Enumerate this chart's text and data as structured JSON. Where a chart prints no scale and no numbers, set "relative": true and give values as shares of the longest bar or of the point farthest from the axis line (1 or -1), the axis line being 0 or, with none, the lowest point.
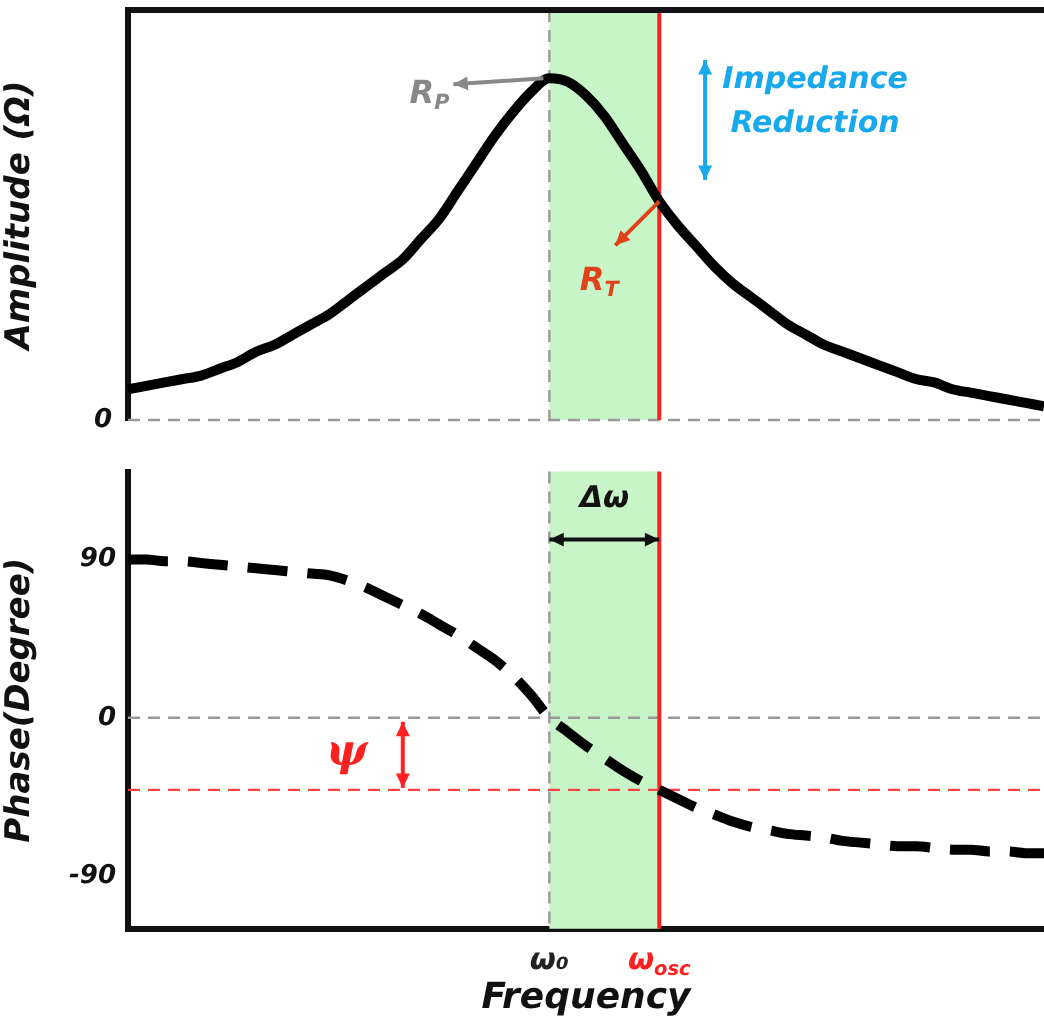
{
  "chart_data": [
    {
      "type": "line",
      "relative": true,
      "ylabel": "Amplitude (Ω)",
      "tick_labels": false,
      "categories": [
        null,
        null,
        null,
        null,
        null,
        null,
        null,
        null,
        null,
        null,
        null,
        null,
        null,
        null,
        null,
        null,
        null,
        null,
        null,
        null,
        null,
        null,
        null,
        "ω₀",
        null,
        null,
        null,
        null,
        null,
        "ω$_{osc}$",
        null,
        null,
        null,
        null,
        null,
        null,
        null,
        null,
        null,
        null,
        null,
        null,
        null,
        null,
        null,
        null,
        null,
        null,
        null,
        null,
        null
      ],
      "series": [
        {
          "color": "#000000",
          "values": [
            0.09,
            0.1,
            0.11,
            0.12,
            0.13,
            0.15,
            0.17,
            0.2,
            0.22,
            0.25,
            0.28,
            0.31,
            0.35,
            0.39,
            0.43,
            0.47,
            0.53,
            0.59,
            0.67,
            0.75,
            0.83,
            0.9,
            0.96,
            1,
            0.99,
            0.95,
            0.89,
            0.81,
            0.73,
            0.64,
            0.57,
            0.51,
            0.45,
            0.4,
            0.36,
            0.32,
            0.28,
            0.25,
            0.22,
            0.2,
            0.18,
            0.16,
            0.14,
            0.12,
            0.11,
            0.09,
            0.08,
            0.07,
            0.06,
            0.05,
            0.04
          ]
        }
      ],
      "ref_lines": [
        {
          "axis": "y",
          "value": 0,
          "label": "0",
          "color": "#999999",
          "line_style": "dashed"
        },
        {
          "axis": "x",
          "value": "ω₀",
          "color": "#999999",
          "line_style": "dashed"
        },
        {
          "axis": "x",
          "value": "ω$_{osc}$",
          "color": "#ff2020",
          "line_style": "solid"
        }
      ],
      "bands": [
        {
          "axis": "x",
          "from": "ω₀",
          "to": "ω$_{osc}$",
          "color": "#c8f5c8"
        }
      ],
      "annotations": [
        {
          "text": "R$_{P}$",
          "x": "ω₀",
          "y": 1
        },
        {
          "text": "R$_{T}$",
          "x": "ω$_{osc}$",
          "y": 0.64
        },
        "Impedance Reduction"
      ]
    },
    {
      "type": "line",
      "line_style": "dashed",
      "xlabel": "Frequency",
      "ylabel": "Phase(Degree)",
      "categories": [
        null,
        null,
        null,
        null,
        null,
        null,
        null,
        null,
        null,
        null,
        null,
        null,
        null,
        null,
        null,
        null,
        null,
        null,
        null,
        null,
        null,
        null,
        null,
        "ω₀",
        null,
        null,
        null,
        null,
        null,
        "ω$_{osc}$",
        null,
        null,
        null,
        null,
        null,
        null,
        null,
        null,
        null,
        null,
        null,
        null,
        null,
        null,
        null,
        null,
        null,
        null,
        null,
        null,
        null
      ],
      "ylim": [
        -120,
        140
      ],
      "yticks": [
        90,
        0,
        -90
      ],
      "series": [
        {
          "color": "#000000",
          "values": [
            90,
            90,
            89,
            89,
            88,
            87,
            86,
            85,
            84,
            83,
            82,
            81,
            78,
            74,
            69,
            64,
            59,
            53,
            47,
            40,
            33,
            24,
            13,
            0,
            -8,
            -16,
            -23,
            -30,
            -36,
            -41,
            -46,
            -51,
            -55,
            -59,
            -62,
            -64,
            -66,
            -67,
            -68,
            -70,
            -71,
            -72,
            -73,
            -73,
            -74,
            -75,
            -75,
            -76,
            -76,
            -77,
            -77
          ]
        }
      ],
      "ref_lines": [
        {
          "axis": "y",
          "value": 0,
          "color": "#999999",
          "line_style": "dashed"
        },
        {
          "axis": "x",
          "value": "ω₀",
          "color": "#999999",
          "line_style": "dashed"
        },
        {
          "axis": "x",
          "value": "ω$_{osc}$",
          "color": "#ff2020",
          "line_style": "solid"
        },
        {
          "axis": "y",
          "value": -41,
          "color": "#ff4040",
          "line_style": "dashed"
        }
      ],
      "bands": [
        {
          "axis": "x",
          "from": "ω₀",
          "to": "ω$_{osc}$",
          "color": "#c8f5c8"
        }
      ],
      "annotations": [
        "Δω",
        "ψ"
      ]
    }
  ]
}
